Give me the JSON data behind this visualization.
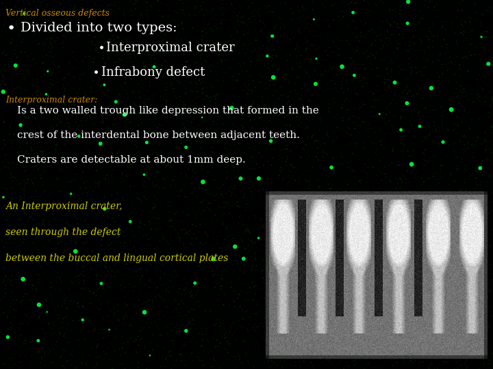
{
  "title": "Vertical osseous defects",
  "title_color": "#CC8800",
  "title_fontsize": 9,
  "bullet_main": "Divided into two types:",
  "bullet_main_color": "#FFFFFF",
  "bullet_main_fontsize": 14,
  "sub_bullet1": "Interproximal crater",
  "sub_bullet2": "Infrabony defect",
  "sub_bullet_color": "#FFFFFF",
  "sub_bullet_fontsize": 13,
  "section_label": "Interproximal crater:",
  "section_label_color": "#CC8800",
  "section_label_fontsize": 9,
  "body_lines": [
    "Is a two walled trough like depression that formed in the",
    "crest of the interdental bone between adjacent teeth.",
    "Craters are detectable at about 1mm deep."
  ],
  "body_color": "#FFFFFF",
  "body_fontsize": 11,
  "caption_lines": [
    "An Interproximal crater,",
    "seen through the defect",
    "between the buccal and lingual cortical plates"
  ],
  "caption_color": "#CCCC00",
  "caption_fontsize": 10,
  "bg_color": "#000000",
  "dot_color": "#00FF44"
}
